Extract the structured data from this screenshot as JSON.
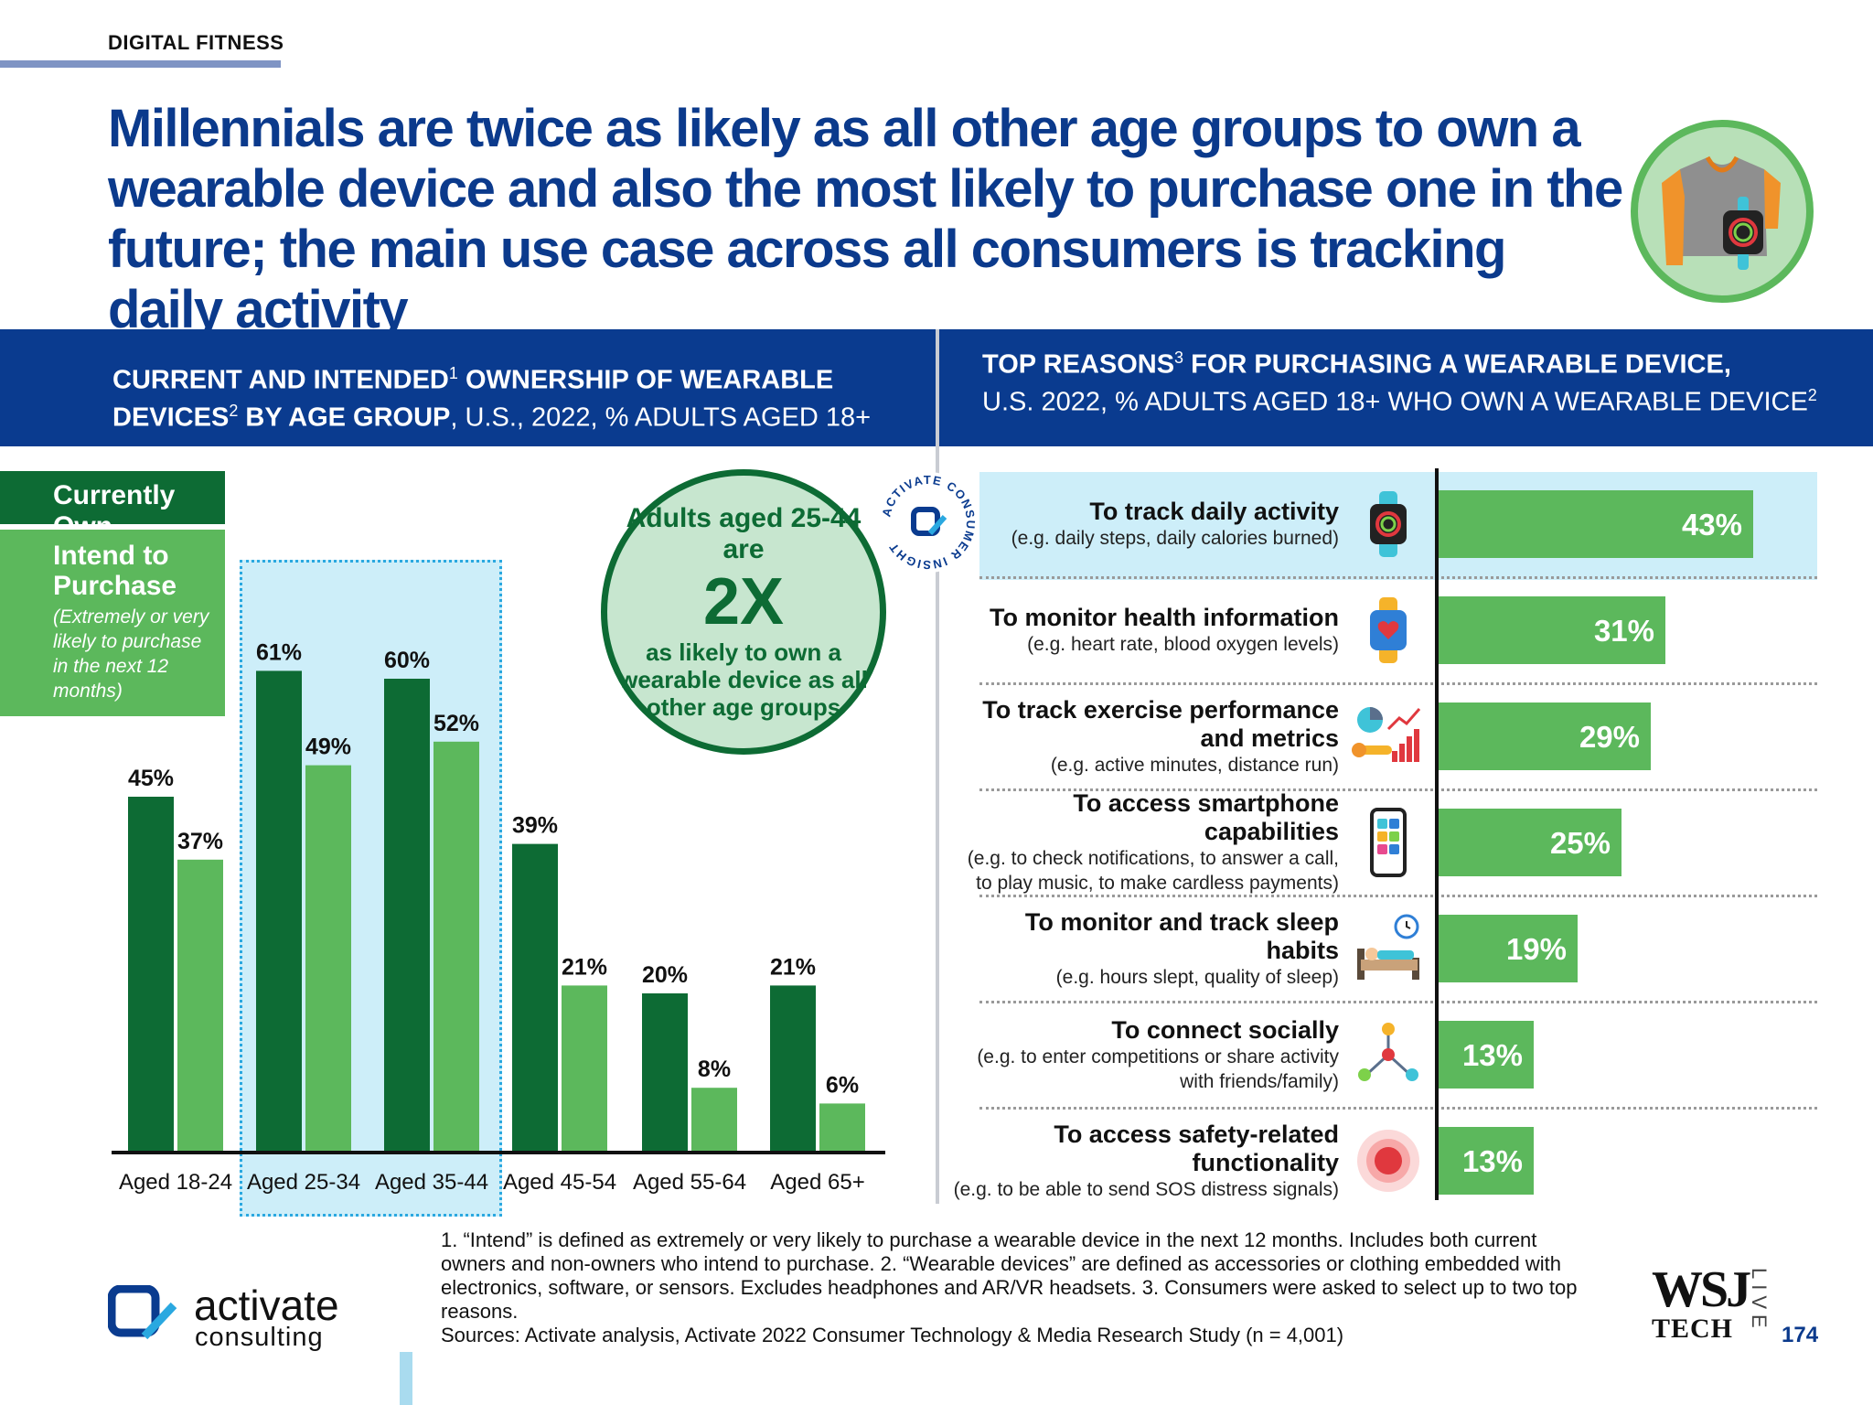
{
  "section": "DIGITAL FITNESS",
  "headline": "Millennials are twice as likely as all other age groups to own a wearable device and also the most likely to purchase one in the future; the main use case across all consumers is tracking daily activity",
  "left_panel": {
    "title_bold_1": "CURRENT AND INTENDED",
    "sup_1": "1",
    "title_bold_2": " OWNERSHIP OF WEARABLE DEVICES",
    "sup_2": "2",
    "title_bold_3": " BY AGE GROUP",
    "title_rest": ", U.S., 2022, % ADULTS AGED 18+"
  },
  "right_panel": {
    "title_bold": "TOP REASONS",
    "sup_3": "3",
    "title_bold_2": " FOR PURCHASING A WEARABLE DEVICE,",
    "title_rest": "U.S. 2022, % ADULTS AGED 18+ WHO OWN A WEARABLE DEVICE",
    "sup_2": "2"
  },
  "legend": {
    "own": "Currently Own",
    "intend_title": "Intend to Purchase",
    "intend_desc": "(Extremely or very likely to purchase in the next 12 months)"
  },
  "callout": {
    "line1": "Adults aged 25-44 are",
    "big": "2X",
    "line2": "as likely to own a wearable device as all other age groups"
  },
  "badge_text": "ACTIVATE CONSUMER INSIGHT",
  "colors": {
    "own": "#0d6b34",
    "intend": "#5cb85c",
    "navy": "#0a3b8f",
    "highlight": "#cdeef9"
  },
  "chart_data": [
    {
      "type": "bar",
      "categories": [
        "Aged 18-24",
        "Aged 25-34",
        "Aged 35-44",
        "Aged 45-54",
        "Aged 55-64",
        "Aged 65+"
      ],
      "series": [
        {
          "name": "Currently Own",
          "values": [
            45,
            61,
            60,
            39,
            20,
            21
          ]
        },
        {
          "name": "Intend to Purchase",
          "values": [
            37,
            49,
            52,
            21,
            8,
            6
          ]
        }
      ],
      "unit": "%",
      "highlighted_categories": [
        "Aged 25-34",
        "Aged 35-44"
      ],
      "legend_position": "left"
    },
    {
      "type": "bar",
      "orientation": "horizontal",
      "categories": [
        {
          "label": "To track daily activity",
          "desc": "(e.g. daily steps, daily calories burned)",
          "icon": "smartwatch-icon"
        },
        {
          "label": "To monitor health information",
          "desc": "(e.g. heart rate, blood oxygen levels)",
          "icon": "health-watch-icon"
        },
        {
          "label": "To track exercise performance and metrics",
          "desc": "(e.g. active minutes, distance run)",
          "icon": "analytics-icon"
        },
        {
          "label": "To access smartphone capabilities",
          "desc": "(e.g. to check notifications, to answer a call, to play music, to make cardless payments)",
          "icon": "smartphone-icon"
        },
        {
          "label": "To monitor and track sleep habits",
          "desc": "(e.g. hours slept, quality of sleep)",
          "icon": "sleep-icon"
        },
        {
          "label": "To connect socially",
          "desc": "(e.g. to enter competitions or share activity with friends/family)",
          "icon": "social-network-icon"
        },
        {
          "label": "To access safety-related functionality",
          "desc": "(e.g. to be able to send SOS distress signals)",
          "icon": "sos-icon"
        }
      ],
      "values": [
        43,
        31,
        29,
        25,
        19,
        13,
        13
      ],
      "unit": "%",
      "highlighted_categories": [
        "To track daily activity"
      ]
    }
  ],
  "footnote": [
    "1. “Intend” is defined as extremely or very likely to purchase a wearable device in the next 12 months. Includes both current owners and non-owners who intend to purchase.  2. “Wearable devices” are defined as accessories or clothing embedded with electronics, software, or sensors. Excludes headphones and AR/VR headsets.  3. Consumers were asked to select up to two top reasons.",
    "Sources: Activate analysis, Activate 2022 Consumer Technology & Media Research Study (n = 4,001)"
  ],
  "logo": {
    "line1": "activate",
    "line2": "consulting"
  },
  "wsj": {
    "line1": "WSJ",
    "line2": "TECH",
    "live": "LIVE"
  },
  "page_number": "174"
}
